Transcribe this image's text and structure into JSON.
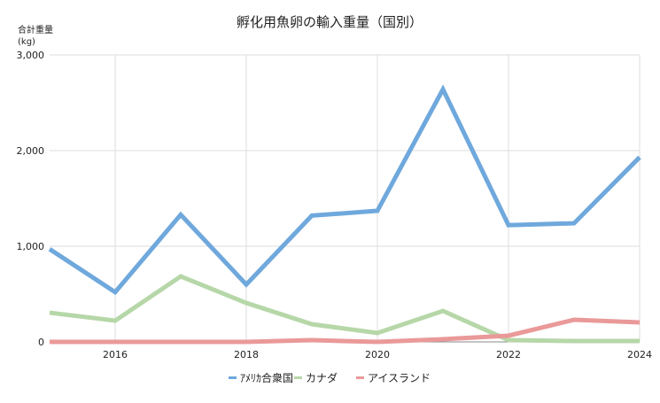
{
  "chart_data": {
    "type": "line",
    "title": "孵化用魚卵の輸入重量（国別）",
    "ylabel": "合計重量\n(kg)",
    "ylabel_lines": [
      "合計重量",
      "(kg)"
    ],
    "xlabel": "",
    "x": [
      2015,
      2016,
      2017,
      2018,
      2019,
      2020,
      2021,
      2022,
      2023,
      2024
    ],
    "xticks": [
      "2016",
      "2018",
      "2020",
      "2022",
      "2024"
    ],
    "xtick_values": [
      2016,
      2018,
      2020,
      2022,
      2024
    ],
    "yticks": [
      "0",
      "1,000",
      "2,000",
      "3,000"
    ],
    "ytick_values": [
      0,
      1000,
      2000,
      3000
    ],
    "ylim": [
      0,
      3000
    ],
    "xlim": [
      2015,
      2024
    ],
    "grid": true,
    "legend_position": "bottom",
    "series": [
      {
        "name": "ｱﾒﾘｶ合衆国",
        "color": "#6fa8dc",
        "values": [
          970,
          520,
          1330,
          600,
          1320,
          1370,
          2640,
          1220,
          1240,
          1930
        ]
      },
      {
        "name": "カナダ",
        "color": "#b6d7a8",
        "values": [
          305,
          222,
          685,
          407,
          185,
          93,
          324,
          18,
          9,
          9
        ]
      },
      {
        "name": "アイスランド",
        "color": "#ea9999",
        "values": [
          0,
          0,
          0,
          0,
          18,
          0,
          28,
          65,
          231,
          204
        ]
      }
    ]
  }
}
